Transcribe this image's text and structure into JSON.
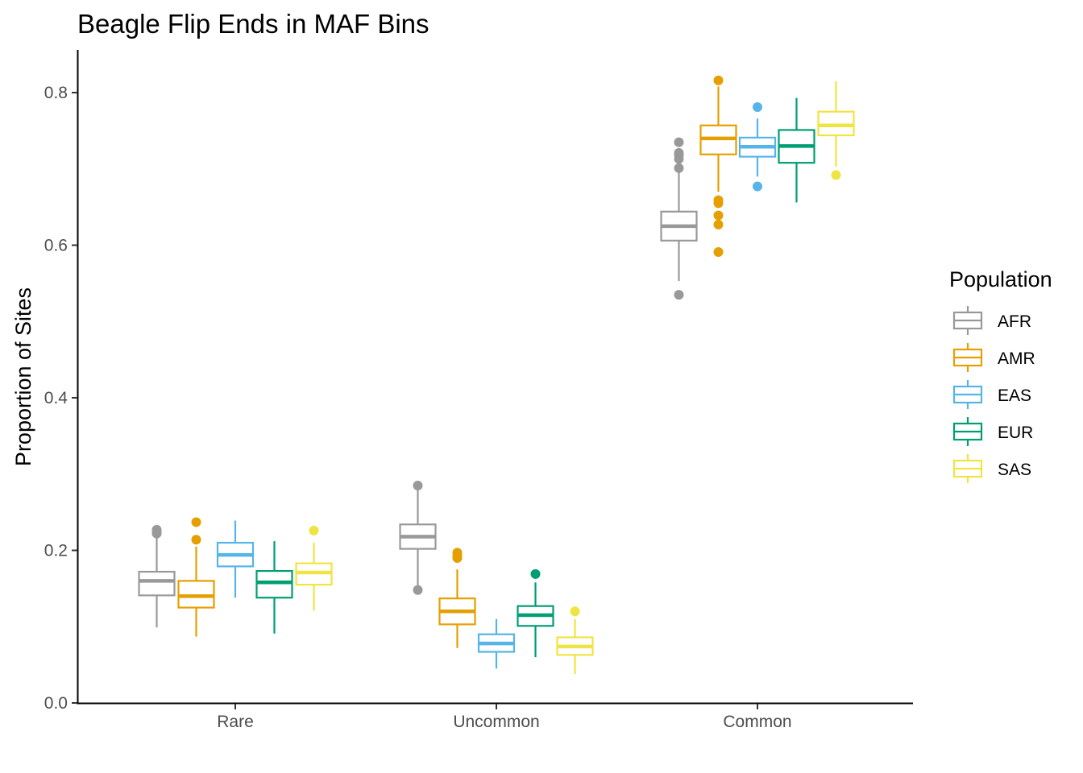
{
  "chart_data": {
    "type": "boxplot",
    "title": "Beagle Flip Ends in MAF Bins",
    "xlabel": "",
    "ylabel": "Proportion of Sites",
    "ylim": [
      0,
      0.85
    ],
    "y_ticks": [
      {
        "value": 0.0,
        "label": "0.0"
      },
      {
        "value": 0.2,
        "label": "0.2"
      },
      {
        "value": 0.4,
        "label": "0.4"
      },
      {
        "value": 0.6,
        "label": "0.6"
      },
      {
        "value": 0.8,
        "label": "0.8"
      }
    ],
    "categories": [
      "Rare",
      "Uncommon",
      "Common"
    ],
    "legend": {
      "title": "Population",
      "position": "right"
    },
    "grid": false,
    "series": [
      {
        "name": "AFR",
        "color": "#999999",
        "boxes": [
          {
            "whisker_low": 0.099,
            "q1": 0.141,
            "median": 0.16,
            "q3": 0.172,
            "whisker_high": 0.219,
            "outliers": [
              0.222,
              0.225,
              0.227
            ]
          },
          {
            "whisker_low": 0.15,
            "q1": 0.202,
            "median": 0.218,
            "q3": 0.234,
            "whisker_high": 0.28,
            "outliers": [
              0.148,
              0.285
            ]
          },
          {
            "whisker_low": 0.553,
            "q1": 0.606,
            "median": 0.625,
            "q3": 0.644,
            "whisker_high": 0.697,
            "outliers": [
              0.535,
              0.701,
              0.713,
              0.718,
              0.721,
              0.735
            ]
          }
        ]
      },
      {
        "name": "AMR",
        "color": "#E69F00",
        "boxes": [
          {
            "whisker_low": 0.087,
            "q1": 0.125,
            "median": 0.14,
            "q3": 0.16,
            "whisker_high": 0.205,
            "outliers": [
              0.214,
              0.237
            ]
          },
          {
            "whisker_low": 0.072,
            "q1": 0.103,
            "median": 0.12,
            "q3": 0.137,
            "whisker_high": 0.175,
            "outliers": [
              0.19,
              0.193,
              0.197
            ]
          },
          {
            "whisker_low": 0.67,
            "q1": 0.719,
            "median": 0.74,
            "q3": 0.757,
            "whisker_high": 0.808,
            "outliers": [
              0.591,
              0.627,
              0.639,
              0.655,
              0.659,
              0.816
            ]
          }
        ]
      },
      {
        "name": "EAS",
        "color": "#56B4E9",
        "boxes": [
          {
            "whisker_low": 0.138,
            "q1": 0.179,
            "median": 0.194,
            "q3": 0.21,
            "whisker_high": 0.239,
            "outliers": []
          },
          {
            "whisker_low": 0.045,
            "q1": 0.067,
            "median": 0.078,
            "q3": 0.09,
            "whisker_high": 0.11,
            "outliers": []
          },
          {
            "whisker_low": 0.69,
            "q1": 0.716,
            "median": 0.729,
            "q3": 0.741,
            "whisker_high": 0.766,
            "outliers": [
              0.677,
              0.781
            ]
          }
        ]
      },
      {
        "name": "EUR",
        "color": "#009E73",
        "boxes": [
          {
            "whisker_low": 0.091,
            "q1": 0.138,
            "median": 0.158,
            "q3": 0.173,
            "whisker_high": 0.212,
            "outliers": []
          },
          {
            "whisker_low": 0.06,
            "q1": 0.101,
            "median": 0.115,
            "q3": 0.127,
            "whisker_high": 0.158,
            "outliers": [
              0.169
            ]
          },
          {
            "whisker_low": 0.656,
            "q1": 0.708,
            "median": 0.73,
            "q3": 0.751,
            "whisker_high": 0.793,
            "outliers": []
          }
        ]
      },
      {
        "name": "SAS",
        "color": "#F0E442",
        "boxes": [
          {
            "whisker_low": 0.121,
            "q1": 0.155,
            "median": 0.171,
            "q3": 0.183,
            "whisker_high": 0.21,
            "outliers": [
              0.226
            ]
          },
          {
            "whisker_low": 0.038,
            "q1": 0.063,
            "median": 0.074,
            "q3": 0.086,
            "whisker_high": 0.11,
            "outliers": [
              0.12
            ]
          },
          {
            "whisker_low": 0.703,
            "q1": 0.744,
            "median": 0.757,
            "q3": 0.775,
            "whisker_high": 0.815,
            "outliers": [
              0.692
            ]
          }
        ]
      }
    ]
  }
}
